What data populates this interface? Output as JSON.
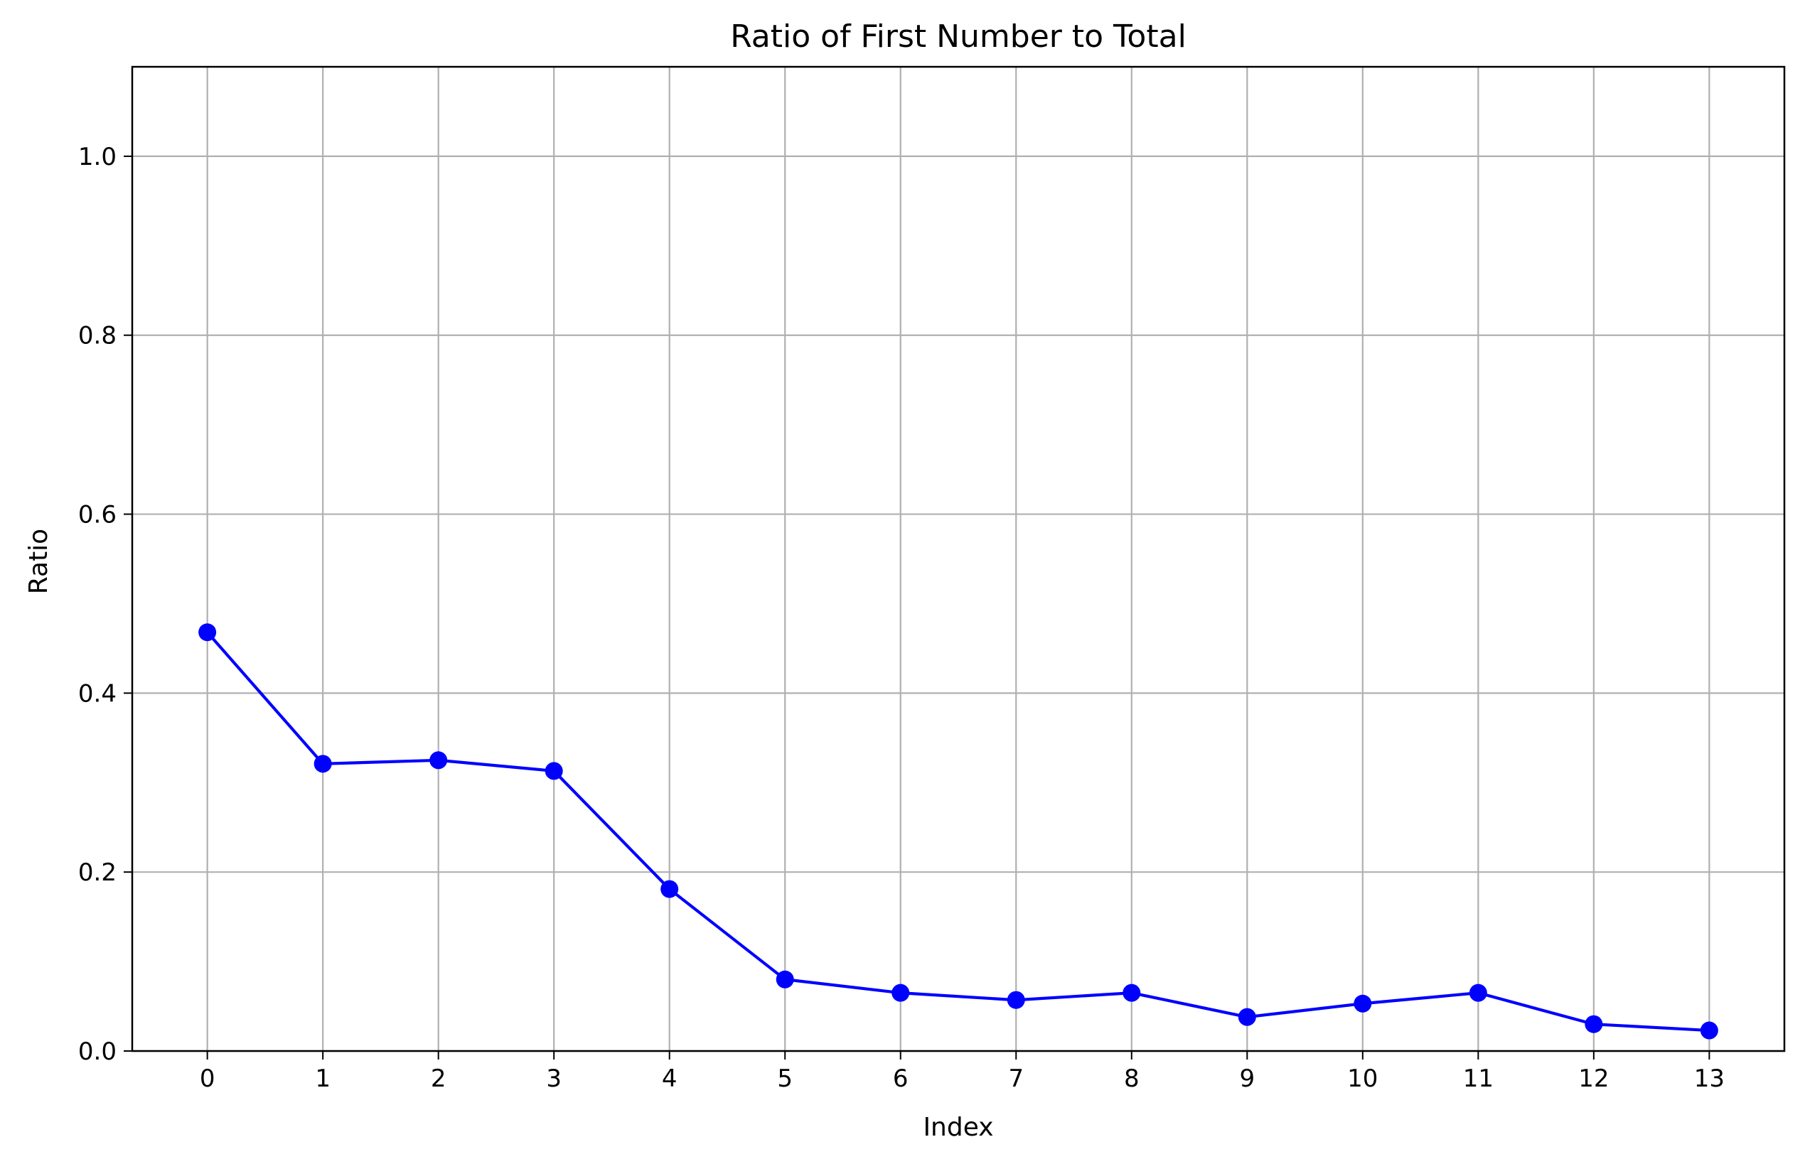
{
  "chart_data": {
    "type": "line",
    "title": "Ratio of First Number to Total",
    "xlabel": "Index",
    "ylabel": "Ratio",
    "x": [
      0,
      1,
      2,
      3,
      4,
      5,
      6,
      7,
      8,
      9,
      10,
      11,
      12,
      13
    ],
    "y": [
      0.468,
      0.321,
      0.325,
      0.313,
      0.181,
      0.08,
      0.065,
      0.057,
      0.065,
      0.038,
      0.053,
      0.065,
      0.03,
      0.023
    ],
    "xticks": [
      "0",
      "1",
      "2",
      "3",
      "4",
      "5",
      "6",
      "7",
      "8",
      "9",
      "10",
      "11",
      "12",
      "13"
    ],
    "yticks": [
      "0.0",
      "0.2",
      "0.4",
      "0.6",
      "0.8",
      "1.0"
    ],
    "ytick_values": [
      0.0,
      0.2,
      0.4,
      0.6,
      0.8,
      1.0
    ],
    "xlim": [
      -0.65,
      13.65
    ],
    "ylim": [
      0,
      1.1
    ],
    "grid": true,
    "line_color": "#0000ff",
    "grid_color": "#b0b0b0"
  }
}
